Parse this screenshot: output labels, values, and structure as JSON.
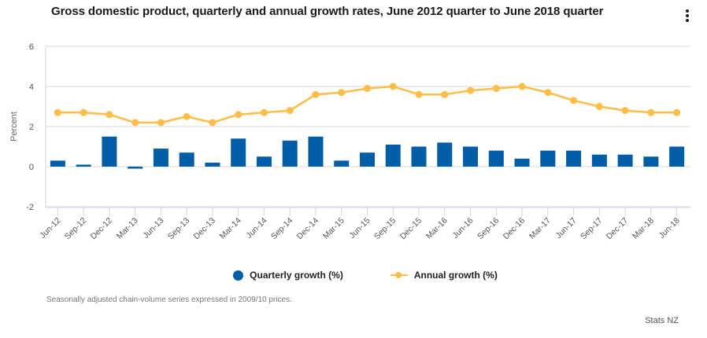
{
  "header": {
    "title": "Gross domestic product, quarterly and annual growth rates, June 2012 quarter to June 2018 quarter",
    "menu_icon": "kebab-menu-icon"
  },
  "colors": {
    "quarterly": "#005da6",
    "annual": "#ffbd47",
    "grid": "#e6e6e6",
    "axis": "#ccd6eb"
  },
  "legend": {
    "quarterly_label": "Quarterly growth (%)",
    "annual_label": "Annual growth (%)"
  },
  "footer": {
    "note": "Seasonally adjusted chain-volume series expressed in 2009/10 prices.",
    "credit": "Stats NZ"
  },
  "chart_data": {
    "type": "bar+line",
    "title": "Gross domestic product, quarterly and annual growth rates, June 2012 quarter to June 2018 quarter",
    "xlabel": "",
    "ylabel": "Percent",
    "ylim": [
      -2,
      6
    ],
    "yticks": [
      -2,
      0,
      2,
      4,
      6
    ],
    "grid": true,
    "legend_position": "bottom",
    "categories": [
      "Jun-12",
      "Sep-12",
      "Dec-12",
      "Mar-13",
      "Jun-13",
      "Sep-13",
      "Dec-13",
      "Mar-14",
      "Jun-14",
      "Sep-14",
      "Dec-14",
      "Mar-15",
      "Jun-15",
      "Sep-15",
      "Dec-15",
      "Mar-16",
      "Jun-16",
      "Sep-16",
      "Dec-16",
      "Mar-17",
      "Jun-17",
      "Sep-17",
      "Dec-17",
      "Mar-18",
      "Jun-18"
    ],
    "series": [
      {
        "name": "Quarterly growth (%)",
        "type": "bar",
        "values": [
          0.3,
          0.1,
          1.5,
          -0.1,
          0.9,
          0.7,
          0.2,
          1.4,
          0.5,
          1.3,
          1.5,
          0.3,
          0.7,
          1.1,
          1.0,
          1.2,
          1.0,
          0.8,
          0.4,
          0.8,
          0.8,
          0.6,
          0.6,
          0.5,
          1.0
        ]
      },
      {
        "name": "Annual growth (%)",
        "type": "line",
        "values": [
          2.7,
          2.7,
          2.6,
          2.2,
          2.2,
          2.5,
          2.2,
          2.6,
          2.7,
          2.8,
          3.6,
          3.7,
          3.9,
          4.0,
          3.6,
          3.6,
          3.8,
          3.9,
          4.0,
          3.7,
          3.3,
          3.0,
          2.8,
          2.7,
          2.7
        ]
      }
    ],
    "note": "Seasonally adjusted chain-volume series expressed in 2009/10 prices.",
    "source": "Stats NZ"
  }
}
